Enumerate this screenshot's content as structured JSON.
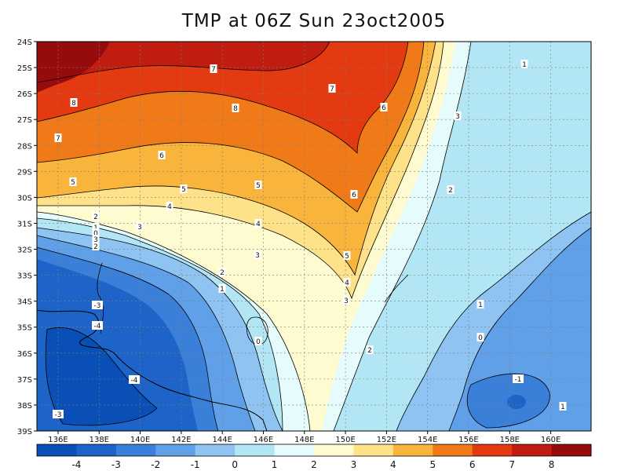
{
  "title": "TMP at 06Z Sun 23oct2005",
  "map": {
    "lat_labels": [
      "24S",
      "25S",
      "26S",
      "27S",
      "28S",
      "29S",
      "30S",
      "31S",
      "32S",
      "33S",
      "34S",
      "35S",
      "36S",
      "37S",
      "38S",
      "39S"
    ],
    "lon_labels": [
      "136E",
      "138E",
      "140E",
      "142E",
      "144E",
      "146E",
      "148E",
      "150E",
      "152E",
      "154E",
      "156E",
      "158E",
      "160E"
    ],
    "contour_labels": [
      "7",
      "8",
      "7",
      "8",
      "7",
      "6",
      "1",
      "3",
      "6",
      "5",
      "5",
      "5",
      "6",
      "2",
      "4",
      "3",
      "4",
      "2",
      "1",
      "0",
      "3",
      "2",
      "1",
      "5",
      "3",
      "4",
      "2",
      "1",
      "3",
      "0",
      "0",
      "2",
      "-3",
      "-4",
      "-4",
      "-3",
      "-1",
      "1"
    ]
  },
  "colorbar": {
    "labels": [
      "-4",
      "-3",
      "-2",
      "-1",
      "0",
      "1",
      "2",
      "3",
      "4",
      "5",
      "6",
      "7",
      "8"
    ],
    "colors": [
      "#0a4fb5",
      "#1e63c8",
      "#3a7fd8",
      "#5fa0e8",
      "#8ec3f2",
      "#b3e6f5",
      "#e6fbfc",
      "#fffbd0",
      "#fde28a",
      "#f9b43c",
      "#f07a18",
      "#e43a12",
      "#c01d10",
      "#960c0c"
    ]
  }
}
